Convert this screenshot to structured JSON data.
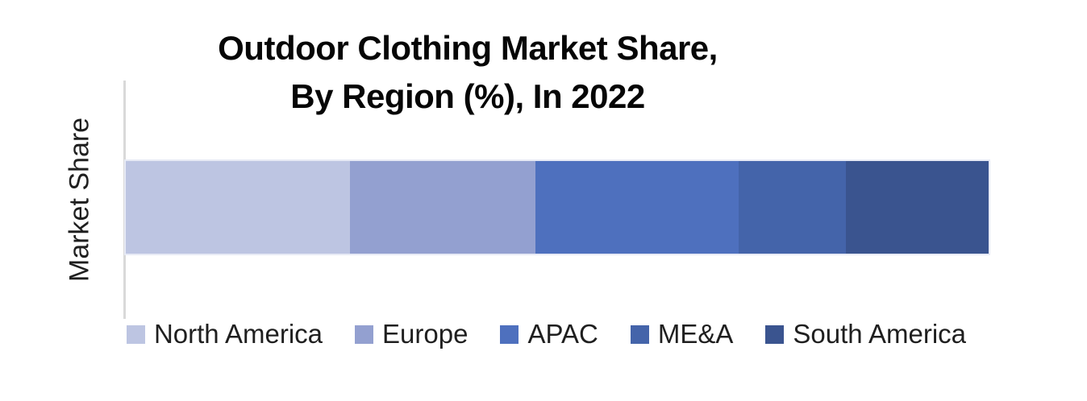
{
  "chart": {
    "title_line1": "Outdoor Clothing Market Share,",
    "title_line2": "By Region (%), In 2022",
    "y_axis_label": "Market Share"
  },
  "chart_data": {
    "type": "bar",
    "subtype": "horizontal-stacked-100pct",
    "title": "Outdoor Clothing Market Share, By Region (%), In 2022",
    "xlabel": "",
    "ylabel": "Market Share",
    "categories": [
      "Market Share"
    ],
    "unit": "%",
    "x_range": [
      0,
      100
    ],
    "grid": false,
    "legend_position": "bottom",
    "series": [
      {
        "name": "North America",
        "value": 26,
        "color": "#BDC5E2"
      },
      {
        "name": "Europe",
        "value": 21.5,
        "color": "#93A0D0"
      },
      {
        "name": "APAC",
        "value": 23.5,
        "color": "#4E70BE"
      },
      {
        "name": "ME&A",
        "value": 12.5,
        "color": "#4464AA"
      },
      {
        "name": "South America",
        "value": 16.5,
        "color": "#3A548F"
      }
    ]
  }
}
